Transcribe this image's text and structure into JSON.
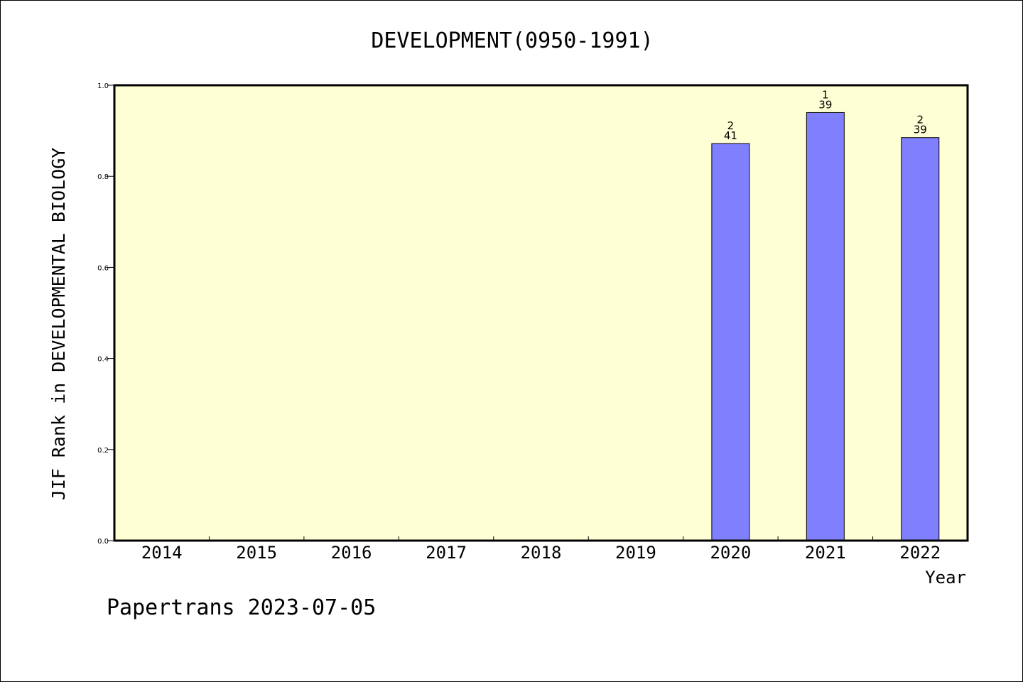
{
  "chart_data": {
    "type": "bar",
    "title": "DEVELOPMENT(0950-1991)",
    "ylabel": "JIF Rank in DEVELOPMENTAL BIOLOGY",
    "xlabel": "Year",
    "categories": [
      "2014",
      "2015",
      "2016",
      "2017",
      "2018",
      "2019",
      "2020",
      "2021",
      "2022"
    ],
    "values": [
      null,
      null,
      null,
      null,
      null,
      null,
      0.872,
      0.94,
      0.885
    ],
    "rank_labels": [
      null,
      null,
      null,
      null,
      null,
      null,
      "2",
      "1",
      "2"
    ],
    "total_labels": [
      null,
      null,
      null,
      null,
      null,
      null,
      "41",
      "39",
      "39"
    ],
    "ylim": [
      0,
      1.0
    ],
    "yticks": [
      "0.0",
      "0.2",
      "0.4",
      "0.6",
      "0.8",
      "1.0"
    ],
    "grid": false,
    "colors": {
      "plot_background": "#ffffd5",
      "bar_fill": "#8080ff",
      "bar_stroke": "#000000"
    }
  },
  "footer": "Papertrans 2023-07-05"
}
